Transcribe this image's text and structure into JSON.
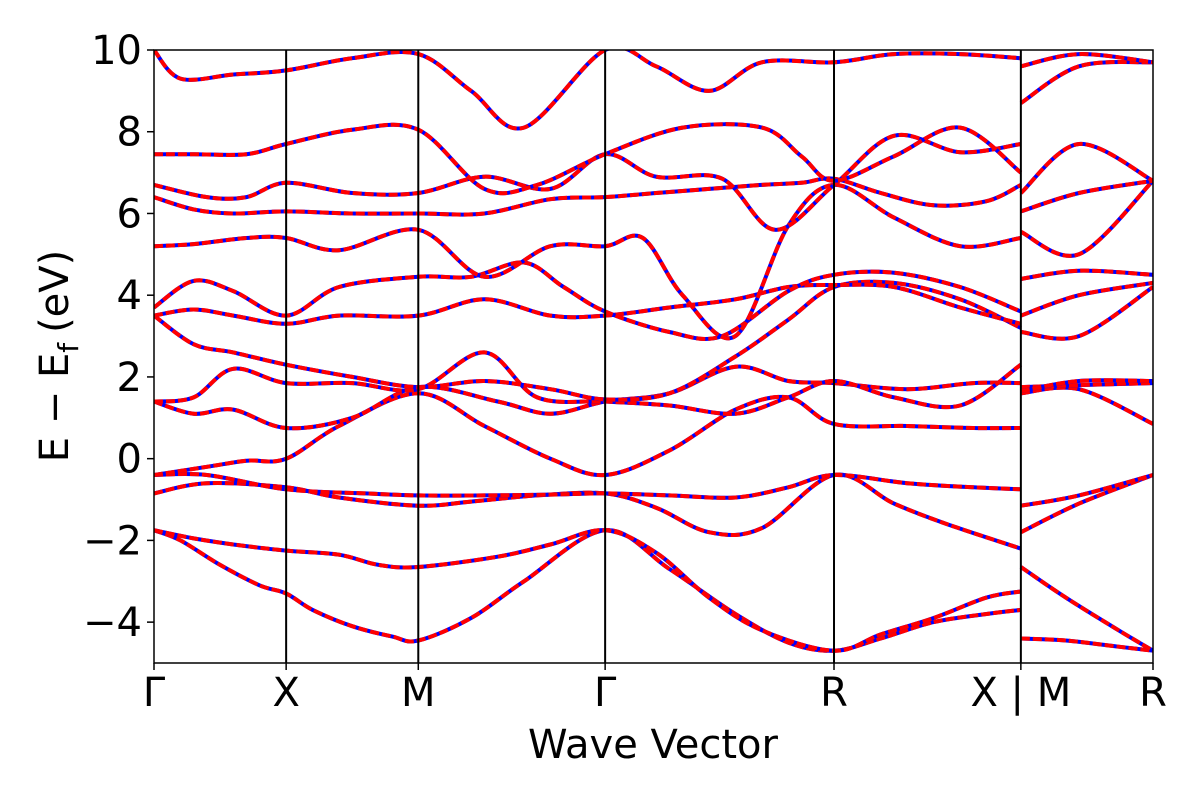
{
  "chart_data": {
    "type": "line",
    "title": "",
    "xlabel": "Wave Vector",
    "ylabel": "E − E",
    "ylabel_subscript": "f",
    "ylabel_unit": "(eV)",
    "ylim": [
      -5,
      10
    ],
    "yticks": [
      -4,
      -2,
      0,
      2,
      4,
      6,
      8,
      10
    ],
    "ytick_labels": [
      "−4",
      "−2",
      "0",
      "2",
      "4",
      "6",
      "8",
      "10"
    ],
    "grid": false,
    "legend": "none",
    "kpath": [
      {
        "label": "Γ",
        "x": 0.0
      },
      {
        "label": "X",
        "x": 0.5
      },
      {
        "label": "M",
        "x": 1.0
      },
      {
        "label": "Γ",
        "x": 1.707
      },
      {
        "label": "R",
        "x": 2.573
      },
      {
        "label": "X | M",
        "x": 3.28
      },
      {
        "label": "R",
        "x": 3.78
      }
    ],
    "xlim": [
      0.0,
      3.78
    ],
    "segment_break": 3.28,
    "colors": {
      "series_a": "#0000ff",
      "series_b": "#ff0000",
      "axis": "#000000"
    },
    "series": [
      {
        "values_x": [
          0,
          0.1,
          0.25,
          0.4,
          0.5,
          0.6,
          0.75,
          0.9,
          1.0,
          1.2,
          1.4,
          1.707,
          1.95,
          2.2,
          2.4,
          2.573,
          2.75,
          2.95,
          3.15,
          3.28,
          3.28,
          3.45,
          3.65,
          3.78
        ],
        "values_y": [
          -1.75,
          -2.0,
          -2.6,
          -3.1,
          -3.3,
          -3.7,
          -4.1,
          -4.35,
          -4.45,
          -3.9,
          -3.0,
          -1.75,
          -2.7,
          -3.8,
          -4.5,
          -4.7,
          -4.4,
          -4.0,
          -3.8,
          -3.7,
          -4.4,
          -4.45,
          -4.6,
          -4.7
        ]
      },
      {
        "values_x": [
          0,
          0.15,
          0.3,
          0.5,
          0.7,
          0.85,
          1.0,
          1.3,
          1.5,
          1.707,
          1.9,
          2.1,
          2.3,
          2.573,
          2.75,
          2.95,
          3.15,
          3.28,
          3.28,
          3.45,
          3.65,
          3.78
        ],
        "values_y": [
          -1.75,
          -1.95,
          -2.1,
          -2.25,
          -2.35,
          -2.6,
          -2.65,
          -2.4,
          -2.1,
          -1.75,
          -2.3,
          -3.4,
          -4.2,
          -4.7,
          -4.3,
          -3.9,
          -3.4,
          -3.25,
          -2.65,
          -3.4,
          -4.2,
          -4.7
        ]
      },
      {
        "values_x": [
          0,
          0.2,
          0.5,
          0.7,
          1.0,
          1.2,
          1.45,
          1.707,
          1.9,
          2.1,
          2.3,
          2.573,
          2.8,
          3.0,
          3.28,
          3.28,
          3.5,
          3.78
        ],
        "values_y": [
          -0.85,
          -0.6,
          -0.7,
          -0.95,
          -1.15,
          -1.05,
          -0.9,
          -0.85,
          -1.2,
          -1.8,
          -1.7,
          -0.4,
          -1.1,
          -1.6,
          -2.2,
          -1.8,
          -1.1,
          -0.4
        ]
      },
      {
        "values_x": [
          0,
          0.2,
          0.5,
          0.8,
          1.0,
          1.25,
          1.5,
          1.707,
          1.95,
          2.2,
          2.4,
          2.573,
          2.85,
          3.1,
          3.28,
          3.28,
          3.5,
          3.78
        ],
        "values_y": [
          -0.4,
          -0.4,
          -0.75,
          -0.85,
          -0.9,
          -0.9,
          -0.88,
          -0.85,
          -0.9,
          -0.95,
          -0.7,
          -0.4,
          -0.6,
          -0.7,
          -0.75,
          -1.15,
          -0.9,
          -0.4
        ]
      },
      {
        "values_x": [
          0,
          0.2,
          0.35,
          0.5,
          0.7,
          1.0,
          1.25,
          1.5,
          1.707,
          1.95,
          2.2,
          2.4,
          2.573,
          2.85,
          3.1,
          3.28,
          3.28,
          3.5,
          3.78
        ],
        "values_y": [
          -0.4,
          -0.2,
          -0.05,
          0.0,
          0.8,
          1.6,
          0.8,
          0.0,
          -0.4,
          0.2,
          1.2,
          1.5,
          0.85,
          0.8,
          0.75,
          0.75,
          1.6,
          1.7,
          0.85
        ]
      },
      {
        "values_x": [
          0,
          0.15,
          0.3,
          0.5,
          0.75,
          1.0,
          1.3,
          1.5,
          1.707,
          1.95,
          2.2,
          2.4,
          2.573,
          2.85,
          3.1,
          3.28,
          3.28,
          3.5,
          3.78
        ],
        "values_y": [
          1.4,
          1.1,
          1.2,
          0.75,
          1.0,
          1.75,
          1.4,
          1.1,
          1.4,
          1.6,
          2.25,
          1.9,
          1.85,
          1.7,
          1.85,
          1.85,
          1.75,
          1.8,
          1.85
        ]
      },
      {
        "values_x": [
          0,
          0.15,
          0.3,
          0.5,
          0.75,
          1.0,
          1.25,
          1.45,
          1.707,
          1.95,
          2.2,
          2.4,
          2.573,
          2.8,
          3.05,
          3.28,
          3.28,
          3.5,
          3.78
        ],
        "values_y": [
          1.4,
          1.5,
          2.2,
          1.85,
          1.85,
          1.7,
          2.6,
          1.5,
          1.4,
          1.3,
          1.1,
          1.5,
          1.9,
          1.5,
          1.3,
          2.3,
          1.65,
          1.9,
          1.9
        ]
      },
      {
        "values_x": [
          0,
          0.15,
          0.3,
          0.5,
          0.75,
          1.0,
          1.25,
          1.5,
          1.707,
          1.95,
          2.2,
          2.4,
          2.573,
          2.8,
          3.05,
          3.28,
          3.28,
          3.5,
          3.78
        ],
        "values_y": [
          3.5,
          2.8,
          2.6,
          2.3,
          2.0,
          1.75,
          1.9,
          1.7,
          1.45,
          1.6,
          2.5,
          3.4,
          4.2,
          4.3,
          3.9,
          3.2,
          3.1,
          3.0,
          4.2
        ]
      },
      {
        "values_x": [
          0,
          0.15,
          0.3,
          0.5,
          0.7,
          1.0,
          1.25,
          1.5,
          1.707,
          1.95,
          2.2,
          2.4,
          2.573,
          2.8,
          3.05,
          3.28,
          3.28,
          3.5,
          3.78
        ],
        "values_y": [
          3.5,
          3.65,
          3.5,
          3.3,
          3.5,
          3.5,
          3.9,
          3.5,
          3.5,
          3.7,
          3.9,
          4.2,
          4.25,
          4.2,
          3.7,
          3.3,
          3.5,
          4.0,
          4.3
        ]
      },
      {
        "values_x": [
          0,
          0.15,
          0.3,
          0.5,
          0.7,
          1.0,
          1.2,
          1.4,
          1.55,
          1.707,
          1.95,
          2.15,
          2.4,
          2.573,
          2.8,
          3.05,
          3.28,
          3.28,
          3.5,
          3.78
        ],
        "values_y": [
          3.7,
          4.35,
          4.1,
          3.5,
          4.2,
          4.45,
          4.45,
          4.8,
          4.2,
          3.6,
          3.1,
          3.0,
          4.1,
          4.5,
          4.55,
          4.2,
          3.6,
          4.4,
          4.6,
          4.5
        ]
      },
      {
        "values_x": [
          0,
          0.15,
          0.35,
          0.5,
          0.7,
          1.0,
          1.25,
          1.5,
          1.707,
          1.85,
          2.0,
          2.2,
          2.4,
          2.573,
          2.8,
          3.05,
          3.28,
          3.28,
          3.5,
          3.78
        ],
        "values_y": [
          5.2,
          5.25,
          5.4,
          5.4,
          5.1,
          5.6,
          4.45,
          5.2,
          5.2,
          5.4,
          4.0,
          3.0,
          5.7,
          6.7,
          5.9,
          5.2,
          5.4,
          5.55,
          5.0,
          6.8
        ]
      },
      {
        "values_x": [
          0,
          0.15,
          0.3,
          0.5,
          0.75,
          1.0,
          1.25,
          1.5,
          1.707,
          1.9,
          2.1,
          2.3,
          2.45,
          2.573,
          2.75,
          2.95,
          3.15,
          3.28,
          3.28,
          3.5,
          3.78
        ],
        "values_y": [
          6.4,
          6.1,
          6.0,
          6.05,
          6.0,
          6.0,
          6.0,
          6.35,
          6.4,
          6.5,
          6.6,
          6.7,
          6.75,
          6.85,
          6.5,
          6.2,
          6.3,
          6.7,
          6.05,
          6.5,
          6.8
        ]
      },
      {
        "values_x": [
          0,
          0.2,
          0.35,
          0.5,
          0.75,
          1.0,
          1.25,
          1.5,
          1.707,
          1.9,
          2.15,
          2.35,
          2.573,
          2.8,
          3.05,
          3.28,
          3.28,
          3.5,
          3.78
        ],
        "values_y": [
          6.7,
          6.4,
          6.4,
          6.75,
          6.5,
          6.5,
          6.9,
          6.6,
          7.45,
          6.9,
          6.85,
          5.6,
          6.7,
          7.9,
          7.5,
          7.7,
          6.5,
          7.7,
          6.8
        ]
      },
      {
        "values_x": [
          0,
          0.15,
          0.35,
          0.5,
          0.75,
          1.0,
          1.25,
          1.45,
          1.707,
          2.0,
          2.3,
          2.45,
          2.573,
          2.8,
          3.05,
          3.28,
          3.28,
          3.5,
          3.78
        ],
        "values_y": [
          7.45,
          7.45,
          7.45,
          7.7,
          8.05,
          8.05,
          6.6,
          6.7,
          7.45,
          8.1,
          8.1,
          7.4,
          6.8,
          7.4,
          8.1,
          7.0,
          8.7,
          9.6,
          9.7
        ]
      },
      {
        "values_x": [
          0,
          0.1,
          0.3,
          0.5,
          0.75,
          1.0,
          1.2,
          1.4,
          1.707,
          1.9,
          2.1,
          2.3,
          2.573,
          2.8,
          3.05,
          3.28,
          3.28,
          3.5,
          3.78
        ],
        "values_y": [
          10.0,
          9.3,
          9.4,
          9.5,
          9.8,
          9.9,
          9.0,
          8.1,
          10.0,
          9.6,
          9.0,
          9.7,
          9.7,
          9.9,
          9.9,
          9.8,
          9.6,
          9.9,
          9.7
        ]
      }
    ]
  }
}
